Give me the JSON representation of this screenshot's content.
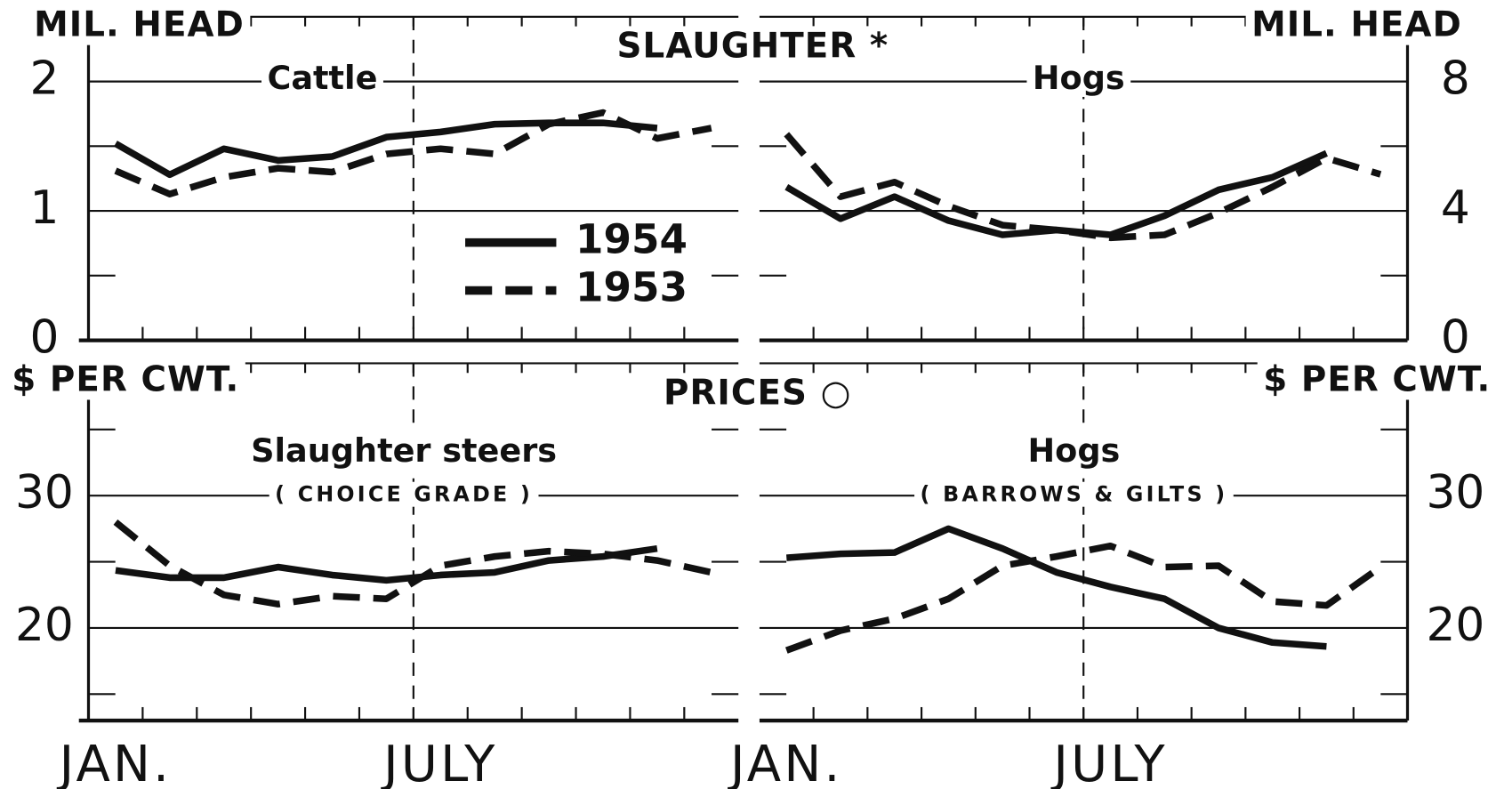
{
  "section_titles": [
    "SLAUGHTER *",
    "PRICES ○"
  ],
  "chart_data": [
    {
      "type": "line",
      "title": "Cattle",
      "ylabel": "MIL. HEAD",
      "axis_side": "left",
      "ylim": [
        0,
        2.5
      ],
      "yticks": [
        0,
        1,
        2
      ],
      "yticks_minor": [
        0.5,
        1.5
      ],
      "grid": true,
      "legend": "center",
      "series": [
        {
          "name": "1954",
          "color": "#111111",
          "style": "solid",
          "values": [
            1.52,
            1.28,
            1.48,
            1.39,
            1.42,
            1.57,
            1.61,
            1.67,
            1.68,
            1.68,
            1.64,
            null
          ]
        },
        {
          "name": "1953",
          "color": "#111111",
          "style": "dashed",
          "values": [
            1.31,
            1.13,
            1.26,
            1.33,
            1.3,
            1.44,
            1.48,
            1.44,
            1.67,
            1.76,
            1.56,
            1.64
          ]
        }
      ]
    },
    {
      "type": "line",
      "title": "Hogs",
      "ylabel": "MIL. HEAD",
      "axis_side": "right",
      "ylim": [
        0,
        10
      ],
      "yticks": [
        0,
        4,
        8
      ],
      "yticks_minor": [
        2,
        6
      ],
      "grid": true,
      "series": [
        {
          "name": "1954",
          "color": "#111111",
          "style": "solid",
          "values": [
            4.74,
            3.76,
            4.44,
            3.7,
            3.26,
            3.41,
            3.26,
            3.85,
            4.65,
            5.04,
            5.78,
            null
          ]
        },
        {
          "name": "1953",
          "color": "#111111",
          "style": "dashed",
          "values": [
            6.37,
            4.44,
            4.89,
            4.15,
            3.56,
            3.41,
            3.17,
            3.26,
            3.94,
            4.74,
            5.63,
            5.13
          ]
        }
      ]
    },
    {
      "type": "line",
      "title": "Slaughter steers",
      "subtitle": "( CHOICE GRADE )",
      "ylabel": "$ PER CWT.",
      "axis_side": "left",
      "categories": [
        "JAN.",
        null,
        null,
        null,
        null,
        null,
        "JULY",
        null,
        null,
        null,
        null,
        null
      ],
      "ylim": [
        13,
        40
      ],
      "yticks": [
        20,
        30
      ],
      "yticks_minor": [
        15,
        25,
        35
      ],
      "grid": true,
      "series": [
        {
          "name": "1954",
          "color": "#111111",
          "style": "solid",
          "values": [
            24.35,
            23.8,
            23.8,
            24.6,
            24.0,
            23.6,
            24.0,
            24.2,
            25.1,
            25.4,
            26.0,
            null
          ]
        },
        {
          "name": "1953",
          "color": "#111111",
          "style": "dashed",
          "values": [
            28.0,
            24.7,
            22.5,
            21.8,
            22.4,
            22.2,
            24.7,
            25.4,
            25.8,
            25.6,
            25.1,
            24.2
          ]
        }
      ]
    },
    {
      "type": "line",
      "title": "Hogs",
      "subtitle": "( BARROWS & GILTS )",
      "ylabel": "$ PER CWT.",
      "axis_side": "right",
      "categories": [
        "JAN.",
        null,
        null,
        null,
        null,
        null,
        "JULY",
        null,
        null,
        null,
        null,
        null
      ],
      "ylim": [
        13,
        40
      ],
      "yticks": [
        20,
        30
      ],
      "yticks_minor": [
        15,
        25,
        35
      ],
      "grid": true,
      "series": [
        {
          "name": "1954",
          "color": "#111111",
          "style": "solid",
          "values": [
            25.3,
            25.6,
            25.7,
            27.5,
            26.0,
            24.2,
            23.1,
            22.2,
            20.0,
            18.9,
            18.6,
            null
          ]
        },
        {
          "name": "1953",
          "color": "#111111",
          "style": "dashed",
          "values": [
            18.3,
            19.8,
            20.7,
            22.2,
            24.7,
            25.4,
            26.2,
            24.6,
            24.7,
            22.0,
            21.7,
            24.6
          ]
        }
      ]
    }
  ]
}
